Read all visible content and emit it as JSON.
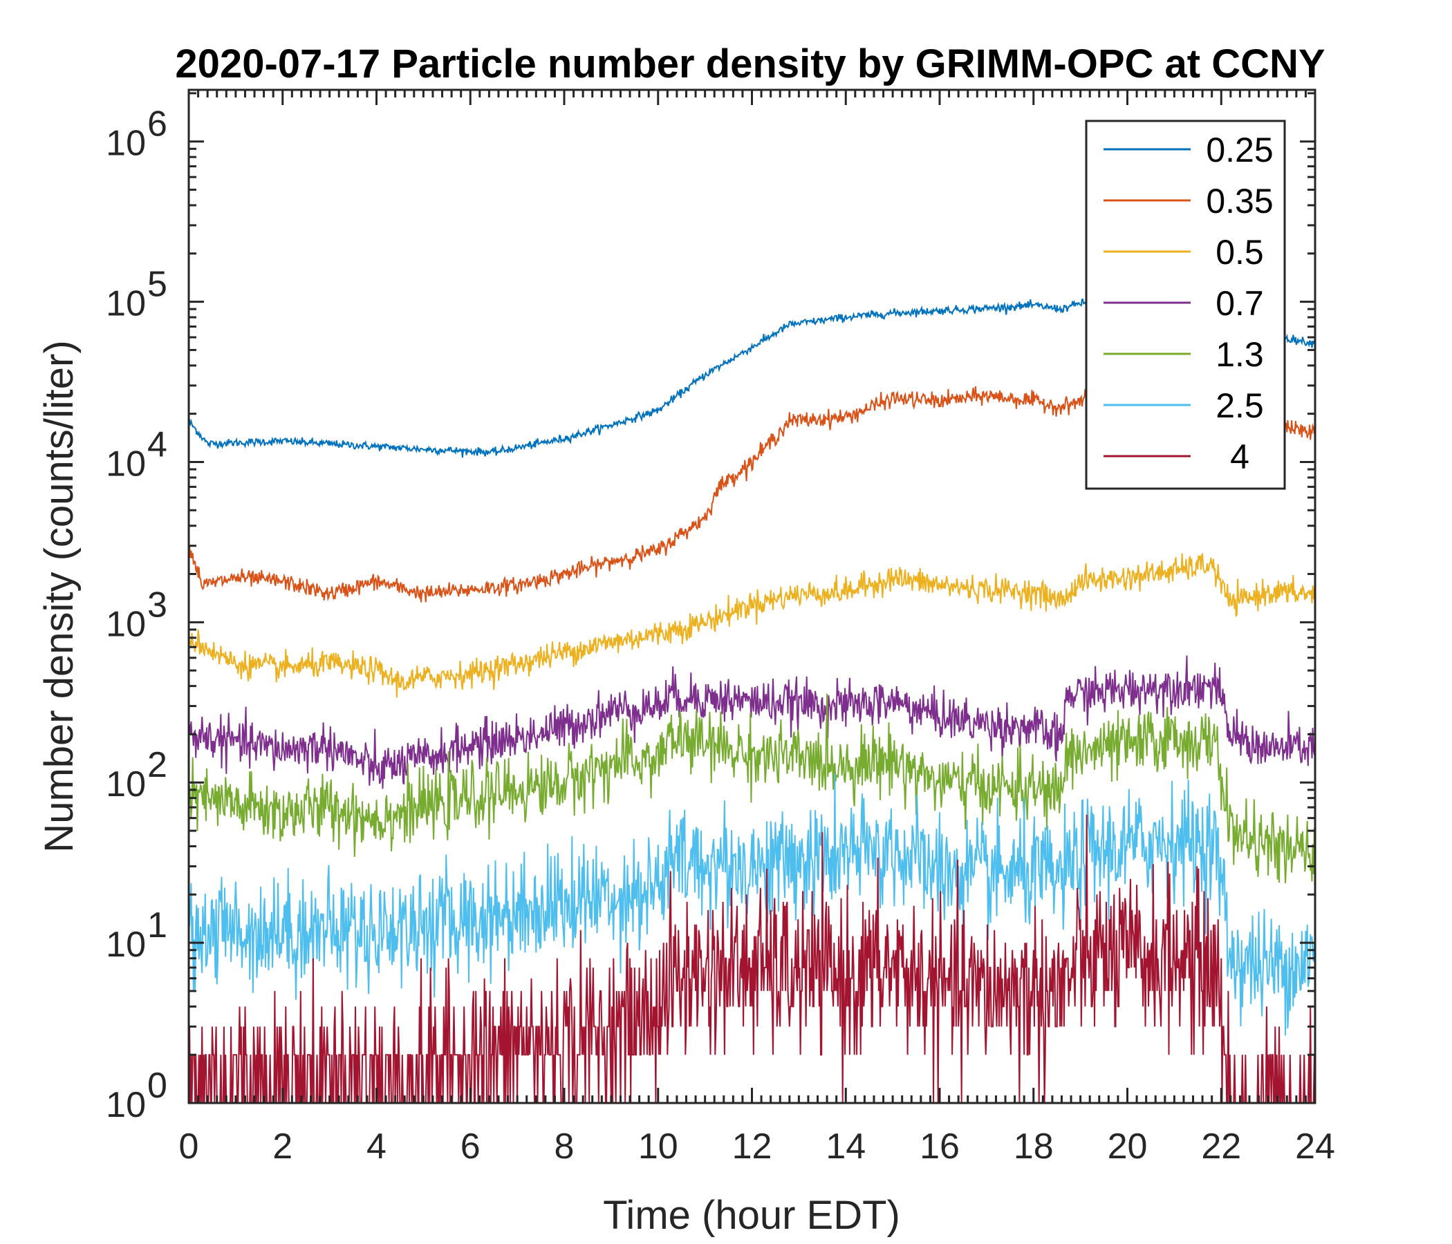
{
  "chart_data": {
    "type": "line",
    "title": "2020-07-17 Particle number density by GRIMM-OPC at CCNY",
    "xlabel": "Time (hour EDT)",
    "ylabel": "Number density (counts/liter)",
    "xlim": [
      0,
      24
    ],
    "ylim": [
      1,
      2100000
    ],
    "yscale": "log",
    "x_ticks": [
      "0",
      "2",
      "4",
      "6",
      "8",
      "10",
      "12",
      "14",
      "16",
      "18",
      "20",
      "22",
      "24"
    ],
    "y_ticks": [
      {
        "base": "10",
        "exp": "0"
      },
      {
        "base": "10",
        "exp": "1"
      },
      {
        "base": "10",
        "exp": "2"
      },
      {
        "base": "10",
        "exp": "3"
      },
      {
        "base": "10",
        "exp": "4"
      },
      {
        "base": "10",
        "exp": "5"
      },
      {
        "base": "10",
        "exp": "6"
      }
    ],
    "grid": false,
    "legend_position": "top-right",
    "series": [
      {
        "name": "0.25",
        "color": "#0072BD",
        "noise_log10": 0.012,
        "points": [
          [
            0,
            18000
          ],
          [
            0.4,
            13000
          ],
          [
            2,
            13500
          ],
          [
            4,
            12500
          ],
          [
            5,
            12000
          ],
          [
            6.5,
            11500
          ],
          [
            8,
            14000
          ],
          [
            9,
            17000
          ],
          [
            10,
            21000
          ],
          [
            11,
            35000
          ],
          [
            12,
            52000
          ],
          [
            12.8,
            72000
          ],
          [
            14,
            80000
          ],
          [
            15,
            85000
          ],
          [
            16,
            88000
          ],
          [
            17,
            91000
          ],
          [
            18,
            95000
          ],
          [
            18.6,
            90000
          ],
          [
            19,
            98000
          ],
          [
            20,
            95000
          ],
          [
            21,
            82000
          ],
          [
            22,
            72000
          ],
          [
            23,
            62000
          ],
          [
            24,
            55000
          ]
        ]
      },
      {
        "name": "0.35",
        "color": "#D95319",
        "noise_log10": 0.025,
        "points": [
          [
            0,
            3000
          ],
          [
            0.3,
            1700
          ],
          [
            1,
            1900
          ],
          [
            2,
            1800
          ],
          [
            3,
            1500
          ],
          [
            4,
            1800
          ],
          [
            5,
            1500
          ],
          [
            6,
            1600
          ],
          [
            7,
            1700
          ],
          [
            8,
            2000
          ],
          [
            9,
            2400
          ],
          [
            10,
            2800
          ],
          [
            11,
            4500
          ],
          [
            11.3,
            7000
          ],
          [
            12,
            10000
          ],
          [
            12.8,
            18000
          ],
          [
            14,
            19000
          ],
          [
            15,
            25000
          ],
          [
            16,
            24000
          ],
          [
            17,
            26000
          ],
          [
            18,
            24000
          ],
          [
            18.6,
            22000
          ],
          [
            19,
            24000
          ],
          [
            20,
            25000
          ],
          [
            21,
            24000
          ],
          [
            22,
            22000
          ],
          [
            23,
            18000
          ],
          [
            24,
            15000
          ]
        ]
      },
      {
        "name": "0.5",
        "color": "#EDB120",
        "noise_log10": 0.04,
        "points": [
          [
            0,
            800
          ],
          [
            1,
            550
          ],
          [
            2,
            520
          ],
          [
            3,
            550
          ],
          [
            4,
            500
          ],
          [
            4.5,
            420
          ],
          [
            5,
            450
          ],
          [
            6,
            480
          ],
          [
            7,
            550
          ],
          [
            8,
            650
          ],
          [
            9,
            750
          ],
          [
            10,
            850
          ],
          [
            11,
            1000
          ],
          [
            12,
            1300
          ],
          [
            13,
            1500
          ],
          [
            14,
            1550
          ],
          [
            15,
            1900
          ],
          [
            16,
            1700
          ],
          [
            17,
            1600
          ],
          [
            18,
            1550
          ],
          [
            18.6,
            1350
          ],
          [
            19,
            1800
          ],
          [
            20,
            1900
          ],
          [
            21,
            2100
          ],
          [
            21.8,
            2300
          ],
          [
            22.2,
            1300
          ],
          [
            23,
            1550
          ],
          [
            24,
            1500
          ]
        ]
      },
      {
        "name": "0.7",
        "color": "#7E2F8E",
        "noise_log10": 0.07,
        "points": [
          [
            0,
            200
          ],
          [
            2,
            160
          ],
          [
            3,
            170
          ],
          [
            4,
            120
          ],
          [
            5,
            140
          ],
          [
            6,
            170
          ],
          [
            7,
            190
          ],
          [
            8,
            220
          ],
          [
            9,
            280
          ],
          [
            10,
            300
          ],
          [
            10.3,
            350
          ],
          [
            12,
            320
          ],
          [
            14,
            300
          ],
          [
            15,
            320
          ],
          [
            16,
            260
          ],
          [
            17,
            230
          ],
          [
            18,
            220
          ],
          [
            18.6,
            180
          ],
          [
            18.7,
            350
          ],
          [
            20,
            380
          ],
          [
            21,
            400
          ],
          [
            21.9,
            400
          ],
          [
            22.2,
            200
          ],
          [
            23,
            160
          ],
          [
            24,
            170
          ]
        ]
      },
      {
        "name": "1.3",
        "color": "#77AC30",
        "noise_log10": 0.1,
        "points": [
          [
            0,
            80
          ],
          [
            2,
            65
          ],
          [
            3,
            70
          ],
          [
            4,
            60
          ],
          [
            5,
            70
          ],
          [
            6,
            80
          ],
          [
            7,
            90
          ],
          [
            8,
            100
          ],
          [
            9,
            130
          ],
          [
            10,
            140
          ],
          [
            10.3,
            190
          ],
          [
            12,
            150
          ],
          [
            14,
            130
          ],
          [
            15,
            140
          ],
          [
            16,
            100
          ],
          [
            17,
            95
          ],
          [
            18,
            90
          ],
          [
            18.6,
            85
          ],
          [
            18.7,
            150
          ],
          [
            20,
            170
          ],
          [
            21,
            190
          ],
          [
            21.9,
            170
          ],
          [
            22.2,
            50
          ],
          [
            23,
            40
          ],
          [
            24,
            35
          ]
        ]
      },
      {
        "name": "2.5",
        "color": "#4DBEEE",
        "noise_log10": 0.17,
        "points": [
          [
            0,
            12
          ],
          [
            2,
            12
          ],
          [
            4,
            12
          ],
          [
            6,
            14
          ],
          [
            8,
            18
          ],
          [
            10,
            22
          ],
          [
            10.3,
            32
          ],
          [
            12,
            30
          ],
          [
            14,
            35
          ],
          [
            15,
            38
          ],
          [
            16,
            28
          ],
          [
            17,
            26
          ],
          [
            18,
            27
          ],
          [
            18.6,
            25
          ],
          [
            19,
            35
          ],
          [
            20,
            40
          ],
          [
            21,
            45
          ],
          [
            21.9,
            40
          ],
          [
            22.2,
            8
          ],
          [
            23,
            7
          ],
          [
            24,
            8
          ]
        ]
      },
      {
        "name": "4",
        "color": "#A2142F",
        "noise_log10": 0.25,
        "points": [
          [
            0,
            1.5
          ],
          [
            4,
            1.5
          ],
          [
            6,
            2
          ],
          [
            8,
            2.5
          ],
          [
            9.5,
            3
          ],
          [
            10,
            4
          ],
          [
            10.3,
            6
          ],
          [
            12,
            7
          ],
          [
            14,
            6
          ],
          [
            15,
            7
          ],
          [
            16,
            5
          ],
          [
            17,
            5
          ],
          [
            18,
            5
          ],
          [
            18.6,
            5
          ],
          [
            19,
            8
          ],
          [
            20,
            8
          ],
          [
            21,
            8
          ],
          [
            21.9,
            7
          ],
          [
            22.2,
            1
          ],
          [
            24,
            1
          ]
        ]
      }
    ]
  }
}
